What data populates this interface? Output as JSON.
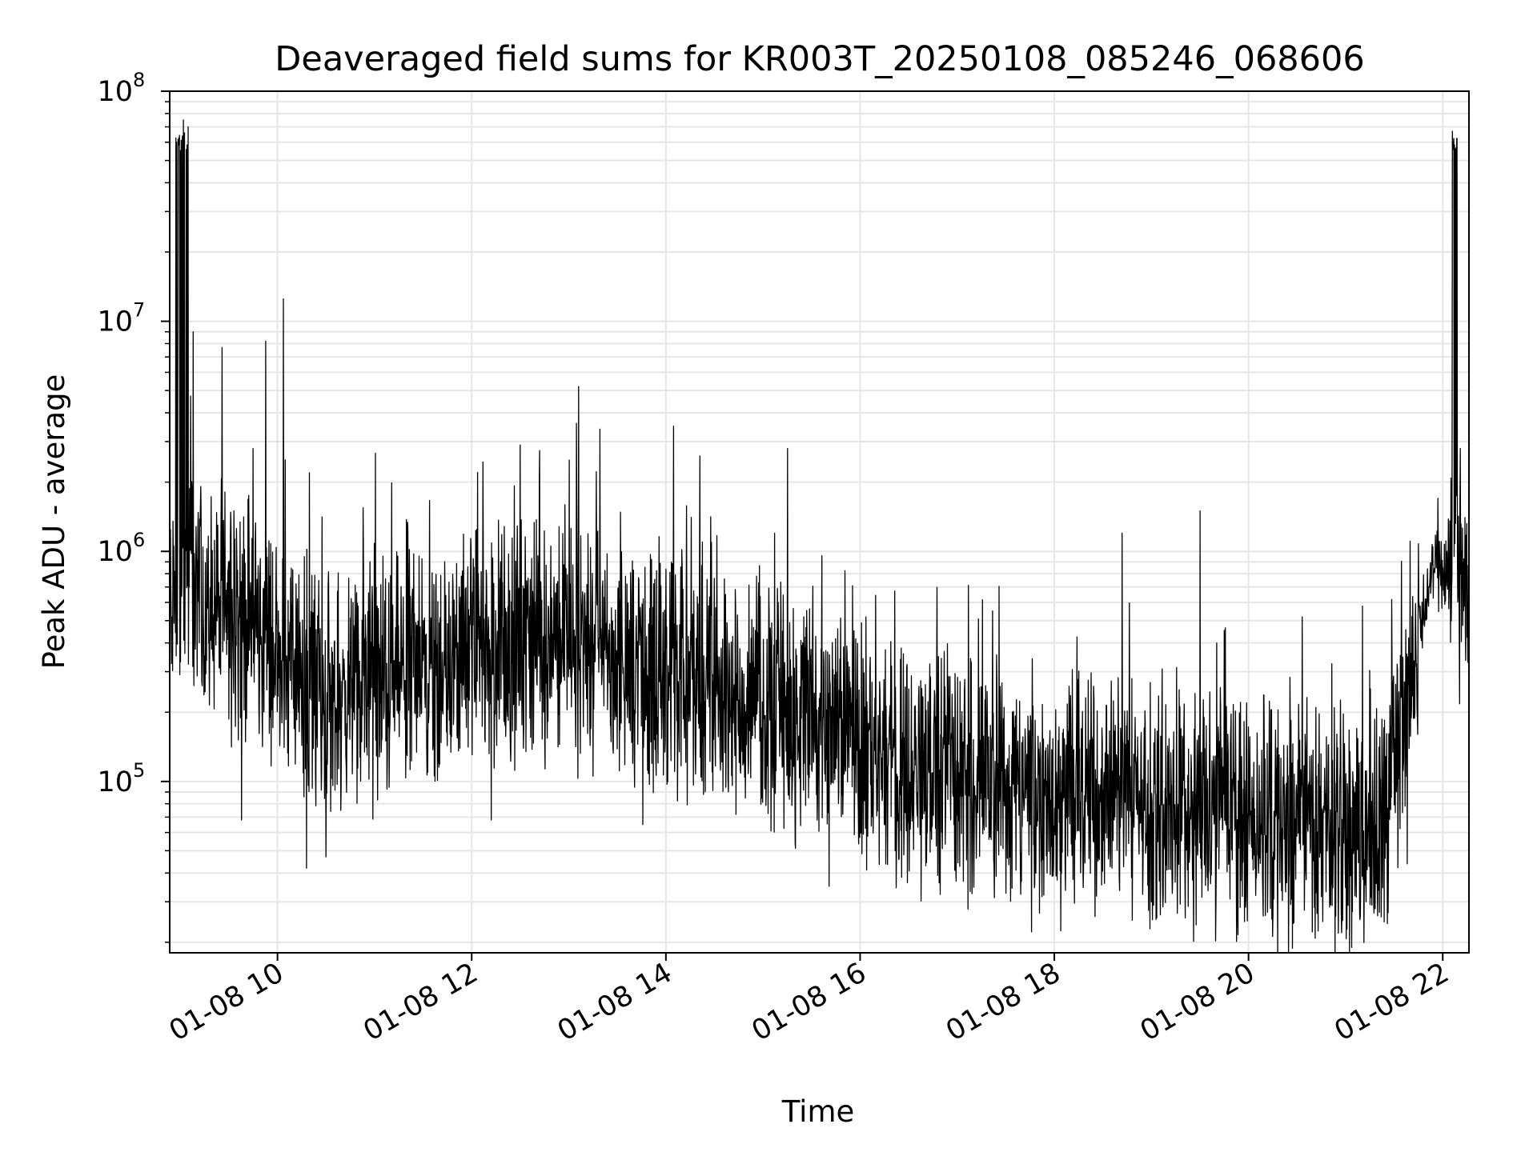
{
  "chart_data": {
    "type": "line",
    "title": "Deaveraged field sums for KR003T_20250108_085246_068606",
    "xlabel": "Time",
    "ylabel": "Peak ADU - average",
    "yscale": "log",
    "ylim": [
      18000,
      100000000
    ],
    "xlim_hours": [
      8.89,
      22.27
    ],
    "grid": true,
    "line_color": "#000000",
    "grid_color": "#e6e6e6",
    "x_ticks": [
      {
        "hour": 10,
        "label": "01-08 10"
      },
      {
        "hour": 12,
        "label": "01-08 12"
      },
      {
        "hour": 14,
        "label": "01-08 14"
      },
      {
        "hour": 16,
        "label": "01-08 16"
      },
      {
        "hour": 18,
        "label": "01-08 18"
      },
      {
        "hour": 20,
        "label": "01-08 20"
      },
      {
        "hour": 22,
        "label": "01-08 22"
      }
    ],
    "y_ticks": [
      {
        "value": 100000,
        "base": "10",
        "exp": "5"
      },
      {
        "value": 1000000,
        "base": "10",
        "exp": "6"
      },
      {
        "value": 10000000,
        "base": "10",
        "exp": "7"
      },
      {
        "value": 100000000,
        "base": "10",
        "exp": "8"
      }
    ],
    "series": [
      {
        "name": "field sums",
        "baseline_profile": [
          [
            8.89,
            600000
          ],
          [
            9.0,
            800000
          ],
          [
            9.3,
            650000
          ],
          [
            9.8,
            450000
          ],
          [
            10.2,
            300000
          ],
          [
            10.6,
            230000
          ],
          [
            11.0,
            260000
          ],
          [
            11.6,
            320000
          ],
          [
            12.6,
            420000
          ],
          [
            13.4,
            380000
          ],
          [
            14.0,
            280000
          ],
          [
            15.0,
            230000
          ],
          [
            15.6,
            170000
          ],
          [
            16.5,
            120000
          ],
          [
            17.5,
            100000
          ],
          [
            18.5,
            90000
          ],
          [
            19.5,
            75000
          ],
          [
            20.3,
            65000
          ],
          [
            21.0,
            60000
          ],
          [
            21.45,
            65000
          ],
          [
            21.6,
            200000
          ],
          [
            21.75,
            500000
          ],
          [
            21.9,
            850000
          ],
          [
            22.27,
            700000
          ]
        ],
        "spikes": [
          [
            8.96,
            60000000
          ],
          [
            9.03,
            75000000
          ],
          [
            9.08,
            70000000
          ],
          [
            9.13,
            9000000
          ],
          [
            9.55,
            1500000
          ],
          [
            9.75,
            2800000
          ],
          [
            9.88,
            8200000
          ],
          [
            10.06,
            12500000
          ],
          [
            10.08,
            2500000
          ],
          [
            12.06,
            2200000
          ],
          [
            12.5,
            2900000
          ],
          [
            13.08,
            3600000
          ],
          [
            13.1,
            5200000
          ],
          [
            13.32,
            3400000
          ],
          [
            14.08,
            3500000
          ],
          [
            14.35,
            2600000
          ],
          [
            15.12,
            1200000
          ],
          [
            18.7,
            1200000
          ],
          [
            19.5,
            1500000
          ],
          [
            21.95,
            1700000
          ],
          [
            22.1,
            67000000
          ],
          [
            22.18,
            2800000
          ]
        ],
        "dips": [
          [
            9.63,
            68000
          ],
          [
            10.3,
            42000
          ],
          [
            10.5,
            47000
          ],
          [
            12.2,
            68000
          ],
          [
            15.68,
            35000
          ],
          [
            17.8,
            35000
          ],
          [
            19.0,
            30000
          ],
          [
            20.15,
            26000
          ],
          [
            20.9,
            26000
          ],
          [
            21.15,
            26000
          ],
          [
            21.35,
            27000
          ]
        ]
      }
    ]
  }
}
